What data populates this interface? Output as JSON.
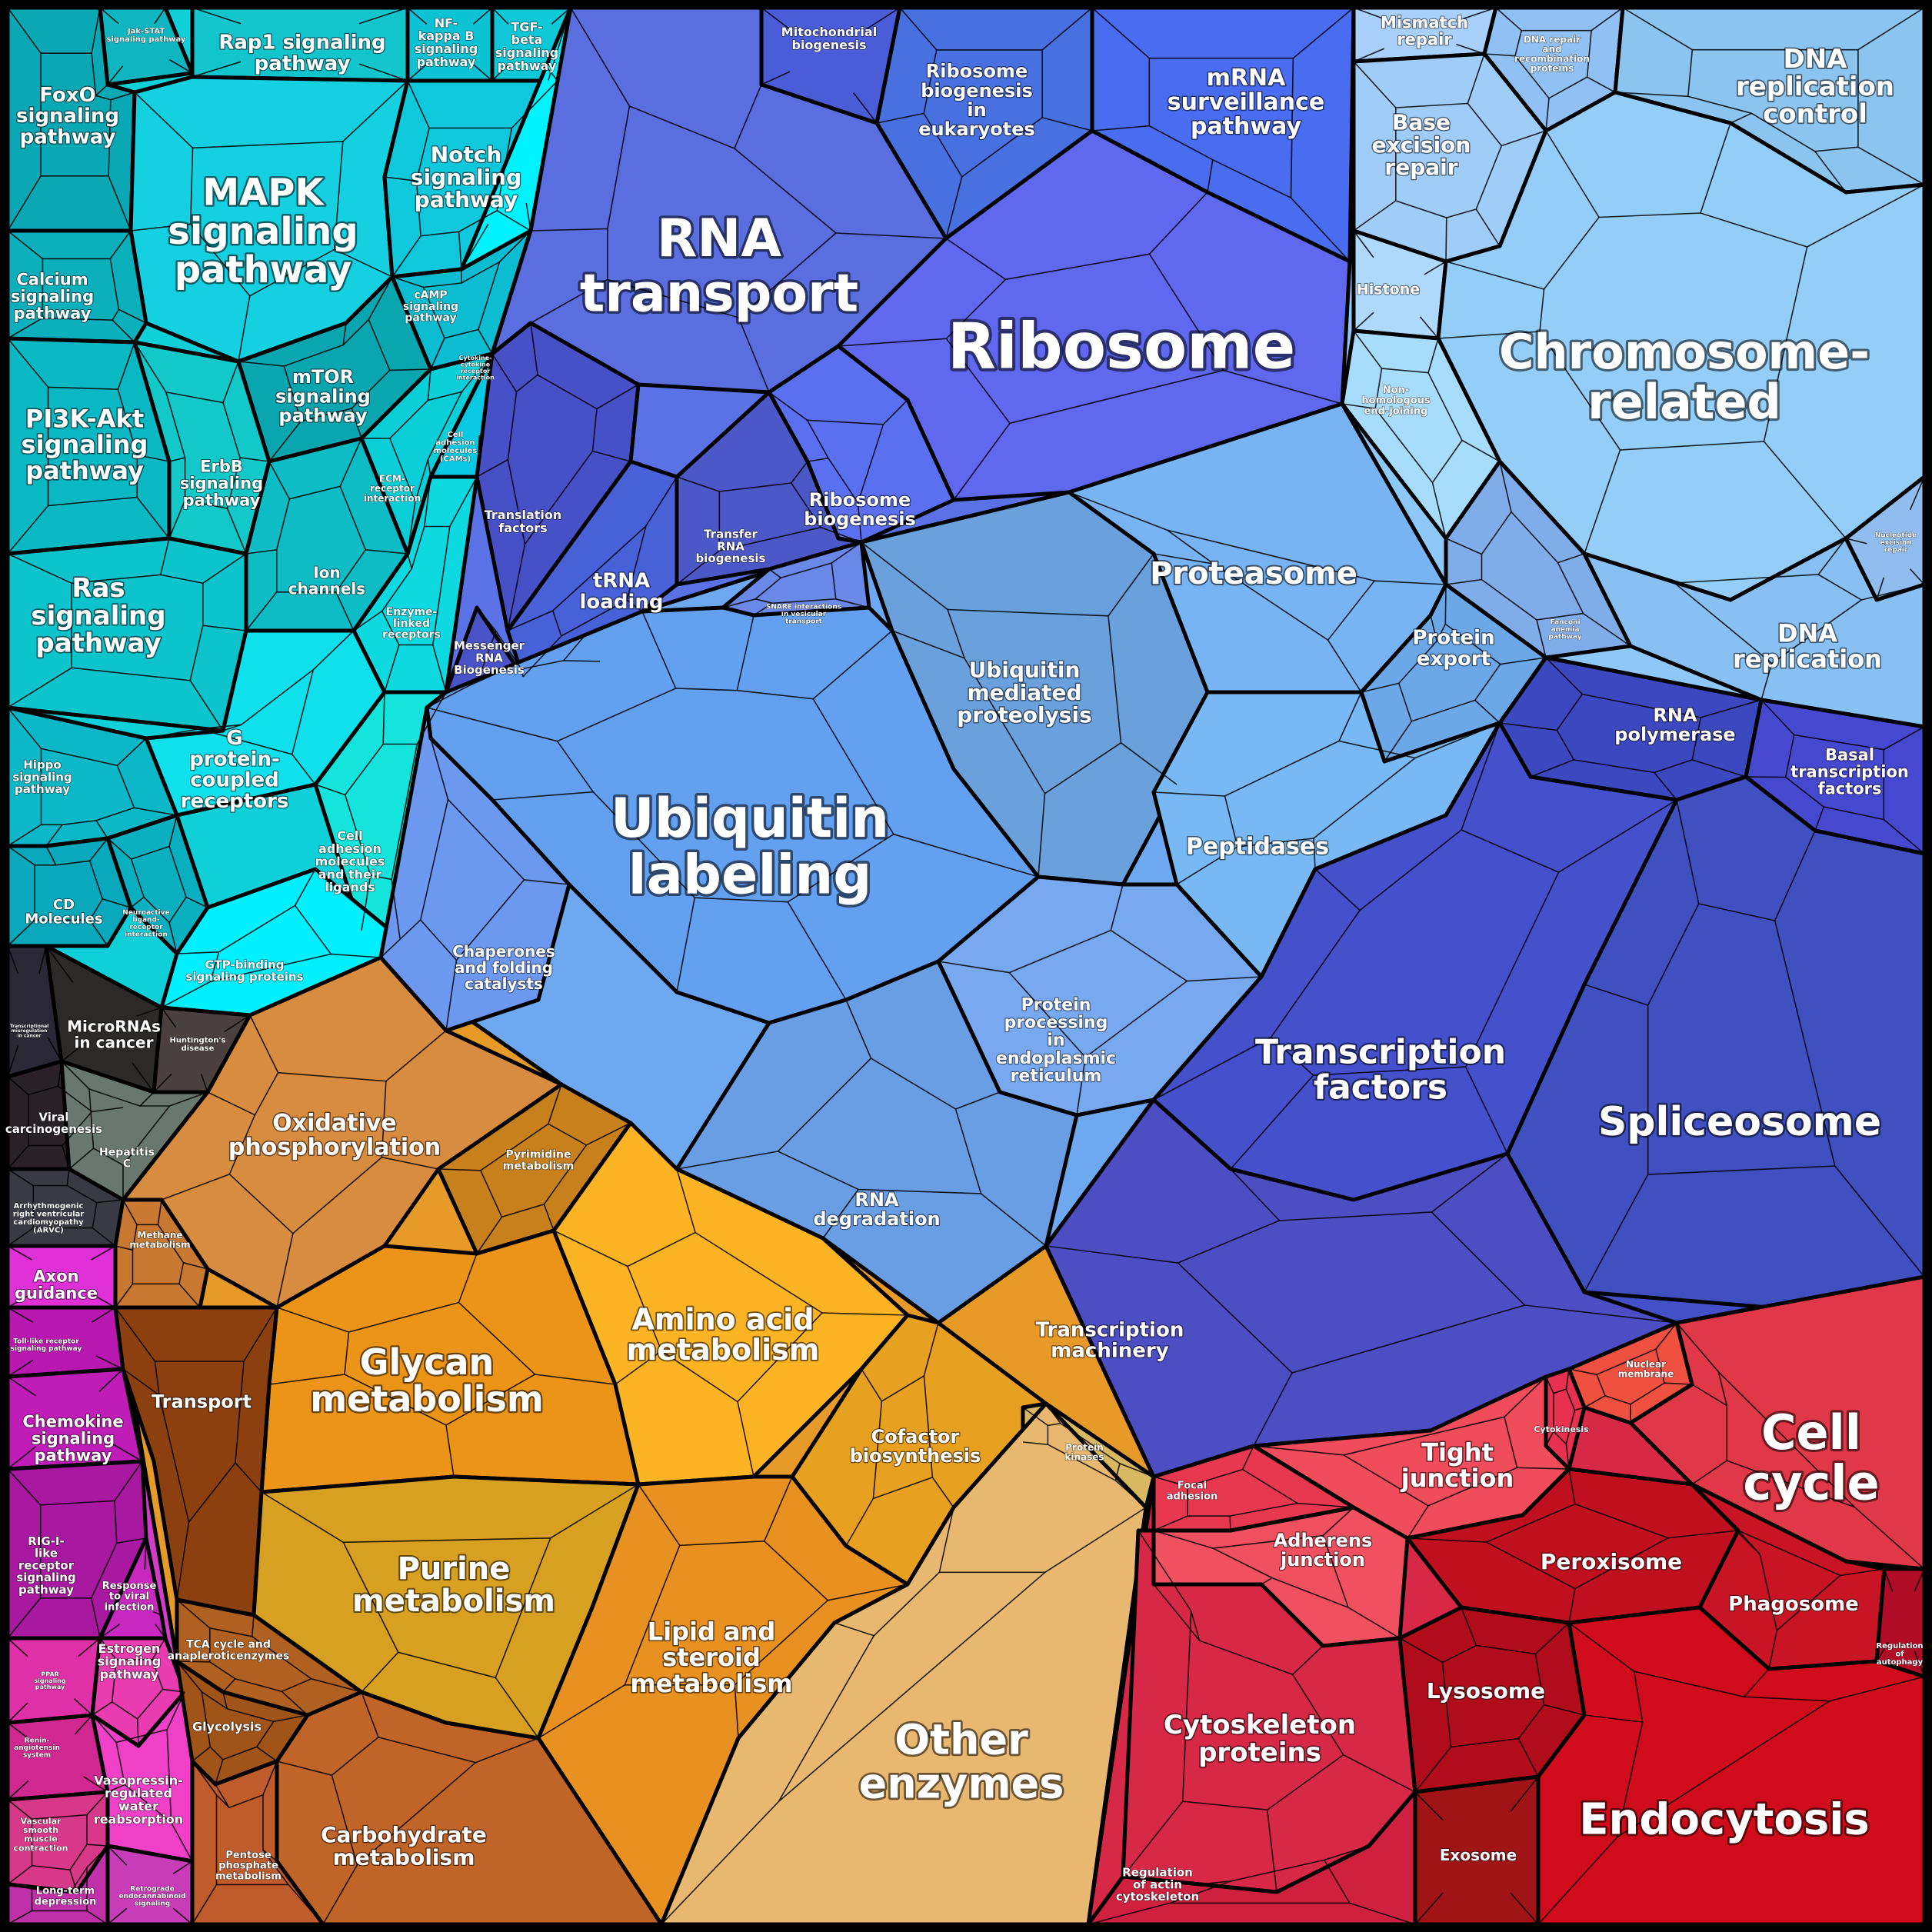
{
  "regions": [
    {
      "id": "signaling",
      "color": "#0fcfd8",
      "label": ""
    },
    {
      "id": "rna",
      "color": "#5a72e6",
      "label": ""
    },
    {
      "id": "chromosome",
      "color": "#8ec8f8",
      "label": ""
    },
    {
      "id": "protein",
      "color": "#6ea8f0",
      "label": ""
    },
    {
      "id": "transcription",
      "color": "#4450c8",
      "label": ""
    },
    {
      "id": "disease",
      "color": "#2c2a2e",
      "label": ""
    },
    {
      "id": "immune",
      "color": "#d23cc8",
      "label": ""
    },
    {
      "id": "metabolism",
      "color": "#e89a28",
      "label": ""
    },
    {
      "id": "other-enzymes",
      "color": "#e8b870",
      "label": ""
    },
    {
      "id": "cellular",
      "color": "#d82848",
      "label": ""
    }
  ],
  "cells": [
    {
      "id": "c-jak",
      "color": "#0fb5c0",
      "label": "Jak-STAT signaling pathway",
      "size": 10
    },
    {
      "id": "c-rap1",
      "color": "#12c4cc",
      "label": "Rap1 signaling pathway",
      "size": 26
    },
    {
      "id": "c-nfkb",
      "color": "#0dc2d4",
      "label": "NF-kappa B signaling pathway",
      "size": 16
    },
    {
      "id": "c-tgfb",
      "color": "#0ec8d8",
      "label": "TGF-beta signaling pathway",
      "size": 16
    },
    {
      "id": "c-foxo",
      "color": "#0aa8b4",
      "label": "FoxO signaling pathway",
      "size": 26
    },
    {
      "id": "c-mapk",
      "color": "#14d0e0",
      "label": "MAPK signaling pathway",
      "size": 48
    },
    {
      "id": "c-notch",
      "color": "#10c8dc",
      "label": "Notch signaling pathway",
      "size": 28
    },
    {
      "id": "c-calcium",
      "color": "#0bb0bc",
      "label": "Calcium signaling pathway",
      "size": 21
    },
    {
      "id": "c-camp",
      "color": "#0cbcd0",
      "label": "cAMP signaling pathway",
      "size": 14
    },
    {
      "id": "c-mtor",
      "color": "#0aa6b0",
      "label": "mTOR signaling pathway",
      "size": 24
    },
    {
      "id": "c-cytokine",
      "color": "#00f2ff",
      "label": "Cytokine-cytokine receptor interaction",
      "size": 8
    },
    {
      "id": "c-pi3k",
      "color": "#0ab8c4",
      "label": "PI3K-Akt signaling pathway",
      "size": 32
    },
    {
      "id": "c-erbb",
      "color": "#12c8c8",
      "label": "ErbB signaling pathway",
      "size": 21
    },
    {
      "id": "c-cam",
      "color": "#08c8e4",
      "label": "Cell adhesion molecules (CAMs)",
      "size": 10
    },
    {
      "id": "c-ecm",
      "color": "#0bcfd8",
      "label": "ECM-receptor interaction",
      "size": 12
    },
    {
      "id": "c-ion",
      "color": "#0dbcc4",
      "label": "Ion channels",
      "size": 20
    },
    {
      "id": "c-enzlinked",
      "color": "#0ed8e0",
      "label": "Enzyme-linked receptors",
      "size": 14
    },
    {
      "id": "c-ras",
      "color": "#0ec4cc",
      "label": "Ras signaling pathway",
      "size": 34
    },
    {
      "id": "c-gpcr",
      "color": "#10e0ec",
      "label": "G protein-coupled receptors",
      "size": 26
    },
    {
      "id": "c-hippo",
      "color": "#0cb8c8",
      "label": "Hippo signaling pathway",
      "size": 15
    },
    {
      "id": "c-celladh",
      "color": "#14e4dc",
      "label": "Cell adhesion molecules and their ligands",
      "size": 16
    },
    {
      "id": "c-cd",
      "color": "#0aa8bc",
      "label": "CD Molecules",
      "size": 18
    },
    {
      "id": "c-neuro",
      "color": "#0ab0c0",
      "label": "Neuroactive ligand-receptor interaction",
      "size": 9
    },
    {
      "id": "c-gtp",
      "color": "#00f0ff",
      "label": "GTP-binding signaling proteins",
      "size": 15
    },
    {
      "id": "c-mito",
      "color": "#4a5cd8",
      "label": "Mitochondrial biogenesis",
      "size": 16
    },
    {
      "id": "c-ribobioeuk",
      "color": "#4870e0",
      "label": "Ribosome biogenesis in eukaryotes",
      "size": 24
    },
    {
      "id": "c-mrna",
      "color": "#4a6cf0",
      "label": "mRNA surveillance pathway",
      "size": 30
    },
    {
      "id": "c-rnatransport",
      "color": "#5a6ee0",
      "label": "RNA transport",
      "size": 68
    },
    {
      "id": "c-ribosome",
      "color": "#6068f0",
      "label": "Ribosome",
      "size": 82
    },
    {
      "id": "c-translation",
      "color": "#4850c8",
      "label": "Translation factors",
      "size": 16
    },
    {
      "id": "c-trna",
      "color": "#4860d8",
      "label": "tRNA loading",
      "size": 26
    },
    {
      "id": "c-transferrna",
      "color": "#4c58c8",
      "label": "Transfer RNA biogenesis",
      "size": 15
    },
    {
      "id": "c-ribobio",
      "color": "#5a70f0",
      "label": "Ribosome biogenesis",
      "size": 24
    },
    {
      "id": "c-messenger",
      "color": "#4a52c8",
      "label": "Messenger RNA Biogenesis",
      "size": 15
    },
    {
      "id": "c-mismatch",
      "color": "#a8d0fa",
      "label": "Mismatch repair",
      "size": 21
    },
    {
      "id": "c-dnarepair",
      "color": "#90c0f4",
      "label": "DNA repair and recombination proteins",
      "size": 12
    },
    {
      "id": "c-dnarepctrl",
      "color": "#8cc4f0",
      "label": "DNA replication control",
      "size": 34
    },
    {
      "id": "c-ber",
      "color": "#a0ccf8",
      "label": "Base excision repair",
      "size": 28
    },
    {
      "id": "c-histone",
      "color": "#aed8fc",
      "label": "Histone",
      "size": 19
    },
    {
      "id": "c-chromosome",
      "color": "#94cef8",
      "label": "Chromosome-related",
      "size": 62
    },
    {
      "id": "c-nhej",
      "color": "#a8dcfc",
      "label": "Non-homologous end-joining",
      "size": 13
    },
    {
      "id": "c-ner",
      "color": "#90bcf0",
      "label": "Nucleotide excision repair",
      "size": 9
    },
    {
      "id": "c-fanconi",
      "color": "#80acea",
      "label": "Fanconi anemia pathway",
      "size": 9
    },
    {
      "id": "c-dnarep",
      "color": "#88c0f4",
      "label": "DNA replication",
      "size": 32
    },
    {
      "id": "c-proteasome",
      "color": "#78b4f4",
      "label": "Proteasome",
      "size": 40
    },
    {
      "id": "c-ubiqprot",
      "color": "#6aa0dc",
      "label": "Ubiquitin mediated proteolysis",
      "size": 28
    },
    {
      "id": "c-protexport",
      "color": "#6ca8e8",
      "label": "Protein export",
      "size": 26
    },
    {
      "id": "c-snare",
      "color": "#6a88e8",
      "label": "SNARE interactions in vesicular transport",
      "size": 9
    },
    {
      "id": "c-ubiq",
      "color": "#64a0f0",
      "label": "Ubiquitin labeling",
      "size": 70
    },
    {
      "id": "c-peptidases",
      "color": "#78b8f4",
      "label": "Peptidases",
      "size": 30
    },
    {
      "id": "c-chaperones",
      "color": "#6c98f0",
      "label": "Chaperones and folding catalysts",
      "size": 20
    },
    {
      "id": "c-protproc",
      "color": "#78a8f0",
      "label": "Protein processing in endoplasmic reticulum",
      "size": 22
    },
    {
      "id": "c-rnadeg",
      "color": "#6a9ee4",
      "label": "RNA degradation",
      "size": 24
    },
    {
      "id": "c-rnapol",
      "color": "#3c48c0",
      "label": "RNA polymerase",
      "size": 24
    },
    {
      "id": "c-basal",
      "color": "#4648d0",
      "label": "Basal transcription factors",
      "size": 21
    },
    {
      "id": "c-tf",
      "color": "#4450cc",
      "label": "Transcription factors",
      "size": 44
    },
    {
      "id": "c-splice",
      "color": "#4050c0",
      "label": "Spliceosome",
      "size": 52
    },
    {
      "id": "c-tmach",
      "color": "#4e4ec4",
      "label": "Transcription machinery",
      "size": 26
    },
    {
      "id": "c-tx",
      "color": "#2a2834",
      "label": "Transcriptional misregulation in cancer",
      "size": 6
    },
    {
      "id": "c-microrna",
      "color": "#2c2a28",
      "label": "MicroRNAs in cancer",
      "size": 20
    },
    {
      "id": "c-huntington",
      "color": "#4a4040",
      "label": "Huntington's disease",
      "size": 10
    },
    {
      "id": "c-viral",
      "color": "#2a2028",
      "label": "Viral carcinogenesis",
      "size": 15
    },
    {
      "id": "c-hepc",
      "color": "#687870",
      "label": "Hepatitis C",
      "size": 14
    },
    {
      "id": "c-arvc",
      "color": "#3a3a44",
      "label": "Arrhythmogenic right ventricular cardiomyopathy (ARVC)",
      "size": 10
    },
    {
      "id": "c-axon",
      "color": "#e030d8",
      "label": "Axon guidance",
      "size": 21
    },
    {
      "id": "c-tlr",
      "color": "#b818b0",
      "label": "Toll-like receptor signaling pathway",
      "size": 9
    },
    {
      "id": "c-chemokine",
      "color": "#c01cb8",
      "label": "Chemokine signaling pathway",
      "size": 21
    },
    {
      "id": "c-rigi",
      "color": "#a818a0",
      "label": "RIG-I-like receptor signaling pathway",
      "size": 15
    },
    {
      "id": "c-viralinf",
      "color": "#c828c0",
      "label": "Response to viral infection",
      "size": 13
    },
    {
      "id": "c-ppar",
      "color": "#e030a8",
      "label": "PPAR signaling pathway",
      "size": 8
    },
    {
      "id": "c-estrogen",
      "color": "#e83cb0",
      "label": "Estrogen signaling pathway",
      "size": 16
    },
    {
      "id": "c-renin",
      "color": "#d02890",
      "label": "Renin-angiotensin system",
      "size": 9
    },
    {
      "id": "c-vaso",
      "color": "#f040c8",
      "label": "Vasopressin-regulated water reabsorption",
      "size": 16
    },
    {
      "id": "c-vascular",
      "color": "#d83888",
      "label": "Vascular smooth muscle contraction",
      "size": 11
    },
    {
      "id": "c-ltd",
      "color": "#c030a8",
      "label": "Long-term depression",
      "size": 13
    },
    {
      "id": "c-retro",
      "color": "#c83cb8",
      "label": "Retrograde endocannabinoid signaling",
      "size": 9
    },
    {
      "id": "c-oxphos",
      "color": "#d88c40",
      "label": "Oxidative phosphorylation",
      "size": 30
    },
    {
      "id": "c-pyrimidine",
      "color": "#c8801c",
      "label": "Pyrimidine metabolism",
      "size": 14
    },
    {
      "id": "c-methane",
      "color": "#c87830",
      "label": "Methane metabolism",
      "size": 12
    },
    {
      "id": "c-glycan",
      "color": "#ec9418",
      "label": "Glycan metabolism",
      "size": 46
    },
    {
      "id": "c-amino",
      "color": "#fcb424",
      "label": "Amino acid metabolism",
      "size": 38
    },
    {
      "id": "c-transport",
      "color": "#8c4010",
      "label": "Transport",
      "size": 24
    },
    {
      "id": "c-cofactor",
      "color": "#e8a020",
      "label": "Cofactor biosynthesis",
      "size": 24
    },
    {
      "id": "c-protkin",
      "color": "#d8b860",
      "label": "Protein kinases",
      "size": 12
    },
    {
      "id": "c-purine",
      "color": "#d8a020",
      "label": "Purine metabolism",
      "size": 40
    },
    {
      "id": "c-lipid",
      "color": "#e89020",
      "label": "Lipid and steroid metabolism",
      "size": 32
    },
    {
      "id": "c-tca",
      "color": "#b06020",
      "label": "TCA cycle and anapleroticenzymes",
      "size": 14
    },
    {
      "id": "c-glycolysis",
      "color": "#a05418",
      "label": "Glycolysis",
      "size": 16
    },
    {
      "id": "c-carb",
      "color": "#c06428",
      "label": "Carbohydrate metabolism",
      "size": 28
    },
    {
      "id": "c-pentose",
      "color": "#c05c2c",
      "label": "Pentose phosphate metabolism",
      "size": 13
    },
    {
      "id": "c-other",
      "color": "#e8b870",
      "label": "Other enzymes",
      "size": 54
    },
    {
      "id": "c-nuclear",
      "color": "#f05040",
      "label": "Nuclear membrane",
      "size": 12
    },
    {
      "id": "c-cytokinesis",
      "color": "#e83050",
      "label": "Cytokinesis",
      "size": 11
    },
    {
      "id": "c-cellcycle",
      "color": "#e03848",
      "label": "Cell cycle",
      "size": 62
    },
    {
      "id": "c-tight",
      "color": "#f04c5c",
      "label": "Tight junction",
      "size": 32
    },
    {
      "id": "c-focal",
      "color": "#e83850",
      "label": "Focal adhesion",
      "size": 13
    },
    {
      "id": "c-adherens",
      "color": "#f05060",
      "label": "Adherens junction",
      "size": 24
    },
    {
      "id": "c-peroxisome",
      "color": "#c01020",
      "label": "Peroxisome",
      "size": 28
    },
    {
      "id": "c-phagosome",
      "color": "#c81424",
      "label": "Phagosome",
      "size": 26
    },
    {
      "id": "c-autophagy",
      "color": "#b00c28",
      "label": "Regulation of autophagy",
      "size": 10
    },
    {
      "id": "c-cytoskel",
      "color": "#d82848",
      "label": "Cytoskeleton proteins",
      "size": 34
    },
    {
      "id": "c-lysosome",
      "color": "#b00c1c",
      "label": "Lysosome",
      "size": 28
    },
    {
      "id": "c-endocytosis",
      "color": "#d00c1c",
      "label": "Endocytosis",
      "size": 56
    },
    {
      "id": "c-exosome",
      "color": "#a01418",
      "label": "Exosome",
      "size": 20
    },
    {
      "id": "c-actin",
      "color": "#d02040",
      "label": "Regulation of actin cytoskeleton",
      "size": 15
    }
  ]
}
